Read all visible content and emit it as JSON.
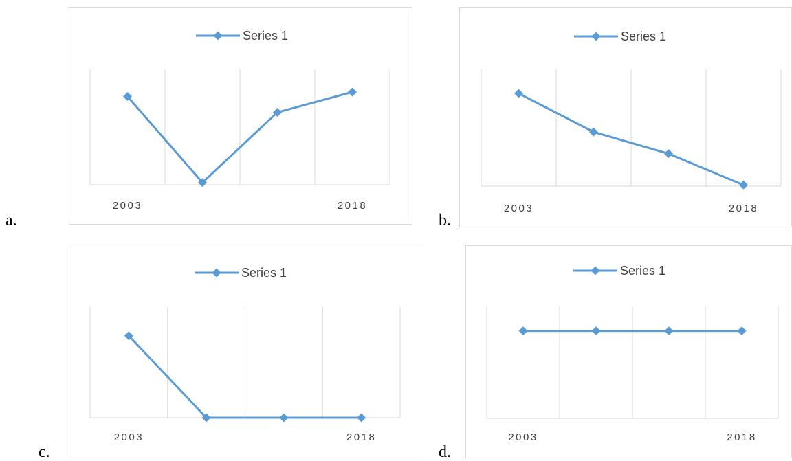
{
  "options": [
    {
      "letter": "a."
    },
    {
      "letter": "b."
    },
    {
      "letter": "c."
    },
    {
      "letter": "d."
    }
  ],
  "series_color": "#5b9bd5",
  "chart_data": [
    {
      "type": "line",
      "x": [
        "2003",
        "",
        "",
        "2018"
      ],
      "series": [
        {
          "name": "Series 1",
          "values": [
            5.8,
            2,
            5.1,
            6
          ]
        }
      ],
      "xtick_labels": [
        "2003",
        "2018"
      ],
      "legend": "top-center",
      "grid": "vertical",
      "ylim": [
        1.9,
        7.0
      ]
    },
    {
      "type": "line",
      "x": [
        "2003",
        "",
        "",
        "2018"
      ],
      "series": [
        {
          "name": "Series 1",
          "values": [
            6,
            4.4,
            3.5,
            2.2
          ]
        }
      ],
      "xtick_labels": [
        "2003",
        "2018"
      ],
      "legend": "top-center",
      "grid": "vertical",
      "ylim": [
        2.15,
        7.0
      ]
    },
    {
      "type": "line",
      "x": [
        "2003",
        "",
        "",
        "2018"
      ],
      "series": [
        {
          "name": "Series 1",
          "values": [
            6,
            2,
            2,
            2
          ]
        }
      ],
      "xtick_labels": [
        "2003",
        "2018"
      ],
      "legend": "top-center",
      "grid": "vertical",
      "ylim": [
        2.0,
        7.4
      ]
    },
    {
      "type": "line",
      "x": [
        "2003",
        "",
        "",
        "2018"
      ],
      "series": [
        {
          "name": "Series 1",
          "values": [
            5,
            5,
            5,
            5
          ]
        }
      ],
      "xtick_labels": [
        "2003",
        "2018"
      ],
      "legend": "top-center",
      "grid": "vertical",
      "ylim": [
        0,
        6.4
      ]
    }
  ]
}
